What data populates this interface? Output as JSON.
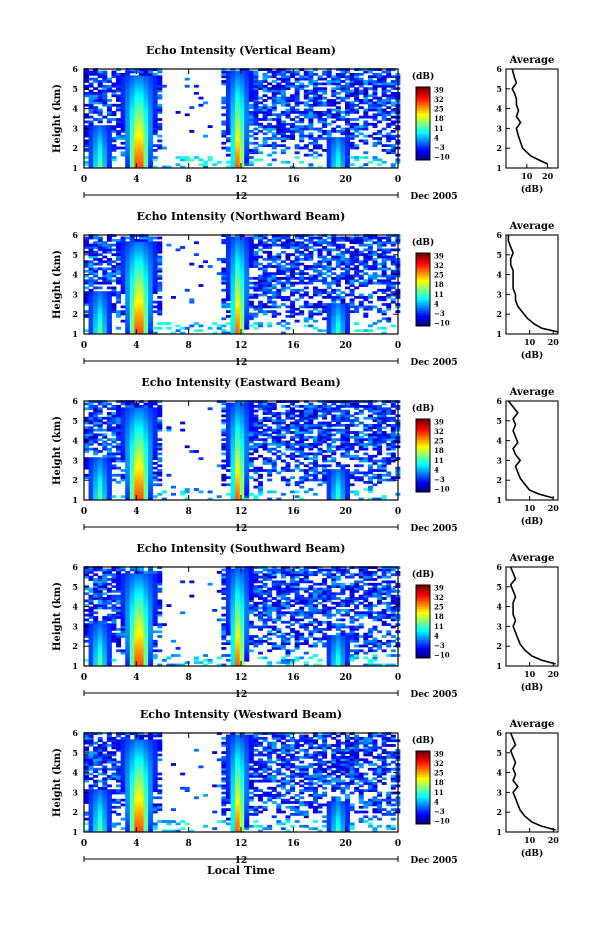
{
  "figure": {
    "xlabel": "Local Time",
    "date_label": "Dec 2005",
    "colorbar_unit": "(dB)",
    "colorbar_ticks": [
      "39",
      "32",
      "25",
      "18",
      "11",
      "4",
      "−3",
      "−10"
    ],
    "average_title": "Average",
    "average_xlabel": "(dB)"
  },
  "chart_data": [
    {
      "type": "heatmap",
      "title": "Echo Intensity (Vertical Beam)",
      "ylabel": "Height (km)",
      "xlim": [
        0,
        24
      ],
      "ylim": [
        1,
        6
      ],
      "xticks": [
        "0",
        "4",
        "8",
        "12",
        "16",
        "20",
        "0"
      ],
      "yticks": [
        "1",
        "2",
        "3",
        "4",
        "5",
        "6"
      ],
      "date_tick": "12",
      "colorbar_range": [
        -10,
        39
      ],
      "average_profile": {
        "xticks": [
          "10",
          "20"
        ],
        "xlim": [
          0,
          25
        ],
        "height": [
          1.2,
          1.4,
          1.6,
          1.8,
          2.0,
          2.3,
          2.6,
          3.0,
          3.3,
          3.6,
          3.9,
          4.2,
          4.5,
          4.8,
          5.0,
          5.3,
          5.6,
          6.0
        ],
        "value": [
          20,
          16,
          12,
          10,
          8,
          7,
          6,
          5,
          7,
          5,
          6,
          5,
          5,
          4,
          3,
          5,
          4,
          3
        ]
      }
    },
    {
      "type": "heatmap",
      "title": "Echo Intensity (Northward Beam)",
      "ylabel": "Height (km)",
      "xlim": [
        0,
        24
      ],
      "ylim": [
        1,
        6
      ],
      "xticks": [
        "0",
        "4",
        "8",
        "12",
        "16",
        "20",
        "0"
      ],
      "yticks": [
        "1",
        "2",
        "3",
        "4",
        "5",
        "6"
      ],
      "date_tick": "12",
      "colorbar_range": [
        -10,
        39
      ],
      "average_profile": {
        "xticks": [
          "10",
          "20"
        ],
        "xlim": [
          0,
          22
        ],
        "height": [
          1.1,
          1.3,
          1.5,
          1.8,
          2.1,
          2.4,
          2.7,
          3.0,
          3.3,
          3.6,
          3.9,
          4.2,
          4.5,
          4.8,
          5.1,
          5.4,
          5.7,
          6.0
        ],
        "value": [
          22,
          15,
          12,
          9,
          7,
          5,
          4,
          4,
          3,
          3,
          3,
          3,
          2,
          2,
          3,
          2,
          1,
          1
        ]
      }
    },
    {
      "type": "heatmap",
      "title": "Echo Intensity (Eastward Beam)",
      "ylabel": "Height (km)",
      "xlim": [
        0,
        24
      ],
      "ylim": [
        1,
        6
      ],
      "xticks": [
        "0",
        "4",
        "8",
        "12",
        "16",
        "20",
        "0"
      ],
      "yticks": [
        "1",
        "2",
        "3",
        "4",
        "5",
        "6"
      ],
      "date_tick": "12",
      "colorbar_range": [
        -10,
        39
      ],
      "average_profile": {
        "xticks": [
          "10",
          "20"
        ],
        "xlim": [
          0,
          22
        ],
        "height": [
          1.1,
          1.3,
          1.5,
          1.8,
          2.1,
          2.4,
          2.7,
          3.0,
          3.3,
          3.6,
          3.9,
          4.2,
          4.5,
          4.8,
          5.1,
          5.4,
          5.7,
          6.0
        ],
        "value": [
          20,
          14,
          10,
          8,
          6,
          5,
          4,
          6,
          4,
          3,
          5,
          4,
          3,
          4,
          3,
          5,
          3,
          1
        ]
      }
    },
    {
      "type": "heatmap",
      "title": "Echo Intensity (Southward Beam)",
      "ylabel": "Height (km)",
      "xlim": [
        0,
        24
      ],
      "ylim": [
        1,
        6
      ],
      "xticks": [
        "0",
        "4",
        "8",
        "12",
        "16",
        "20",
        "0"
      ],
      "yticks": [
        "1",
        "2",
        "3",
        "4",
        "5",
        "6"
      ],
      "date_tick": "12",
      "colorbar_range": [
        -10,
        39
      ],
      "average_profile": {
        "xticks": [
          "10",
          "20"
        ],
        "xlim": [
          0,
          22
        ],
        "height": [
          1.1,
          1.3,
          1.5,
          1.8,
          2.1,
          2.4,
          2.7,
          3.0,
          3.3,
          3.6,
          3.9,
          4.2,
          4.5,
          4.8,
          5.1,
          5.4,
          5.7,
          6.0
        ],
        "value": [
          21,
          15,
          11,
          8,
          6,
          5,
          4,
          3,
          4,
          3,
          3,
          3,
          4,
          3,
          2,
          4,
          3,
          2
        ]
      }
    },
    {
      "type": "heatmap",
      "title": "Echo Intensity (Westward Beam)",
      "ylabel": "Height (km)",
      "xlim": [
        0,
        24
      ],
      "ylim": [
        1,
        6
      ],
      "xticks": [
        "0",
        "4",
        "8",
        "12",
        "16",
        "20",
        "0"
      ],
      "yticks": [
        "1",
        "2",
        "3",
        "4",
        "5",
        "6"
      ],
      "date_tick": "12",
      "colorbar_range": [
        -10,
        39
      ],
      "average_profile": {
        "xticks": [
          "10",
          "20"
        ],
        "xlim": [
          0,
          22
        ],
        "height": [
          1.1,
          1.3,
          1.5,
          1.8,
          2.1,
          2.4,
          2.7,
          3.0,
          3.3,
          3.6,
          3.9,
          4.2,
          4.5,
          4.8,
          5.1,
          5.4,
          5.7,
          6.0
        ],
        "value": [
          21,
          15,
          11,
          8,
          6,
          5,
          4,
          3,
          5,
          3,
          4,
          3,
          4,
          3,
          2,
          4,
          3,
          2
        ]
      }
    }
  ]
}
